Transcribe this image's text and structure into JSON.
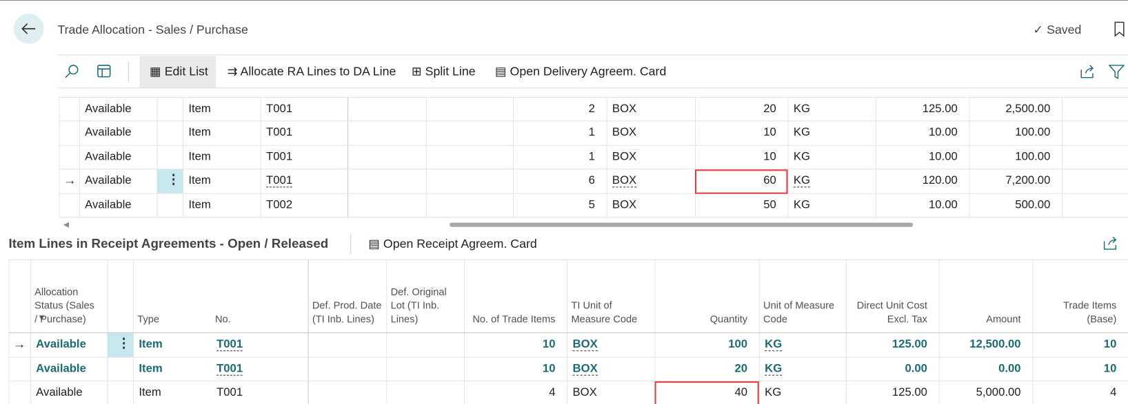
{
  "header": {
    "title": "Trade Allocation - Sales / Purchase",
    "status": "Saved"
  },
  "toolbar": {
    "actions": [
      "Edit List",
      "Allocate RA Lines to DA Line",
      "Split Line",
      "Open Delivery Agreem. Card"
    ]
  },
  "top_table": {
    "rows": [
      {
        "status": "Available",
        "type": "Item",
        "no": "T001",
        "trade_items": "2",
        "ti_uom": "BOX",
        "quantity": "20",
        "uom": "KG",
        "unit_cost": "125.00",
        "amount": "2,500.00"
      },
      {
        "status": "Available",
        "type": "Item",
        "no": "T001",
        "trade_items": "1",
        "ti_uom": "BOX",
        "quantity": "10",
        "uom": "KG",
        "unit_cost": "10.00",
        "amount": "100.00"
      },
      {
        "status": "Available",
        "type": "Item",
        "no": "T001",
        "trade_items": "1",
        "ti_uom": "BOX",
        "quantity": "10",
        "uom": "KG",
        "unit_cost": "10.00",
        "amount": "100.00"
      },
      {
        "status": "Available",
        "type": "Item",
        "no": "T001",
        "trade_items": "6",
        "ti_uom": "BOX",
        "quantity": "60",
        "uom": "KG",
        "unit_cost": "120.00",
        "amount": "7,200.00"
      },
      {
        "status": "Available",
        "type": "Item",
        "no": "T002",
        "trade_items": "5",
        "ti_uom": "BOX",
        "quantity": "50",
        "uom": "KG",
        "unit_cost": "10.00",
        "amount": "500.00"
      }
    ]
  },
  "bottom": {
    "title": "Item Lines in Receipt Agreements - Open / Released",
    "actions": [
      "Open Receipt Agreem. Card"
    ],
    "columns": {
      "status": "Allocation Status (Sales / Purchase)",
      "type": "Type",
      "no": "No.",
      "def_prod_date": "Def. Prod. Date (TI Inb. Lines)",
      "def_lot": "Def. Original Lot (TI Inb. Lines)",
      "trade_items": "No. of Trade Items",
      "ti_uom": "TI Unit of Measure Code",
      "quantity": "Quantity",
      "uom": "Unit of Measure Code",
      "unit_cost": "Direct Unit Cost Excl. Tax",
      "amount": "Amount",
      "trade_base": "Trade Items (Base)"
    },
    "rows": [
      {
        "status": "Available",
        "type": "Item",
        "no": "T001",
        "trade_items": "10",
        "ti_uom": "BOX",
        "quantity": "100",
        "uom": "KG",
        "unit_cost": "125.00",
        "amount": "12,500.00",
        "trade_base": "10"
      },
      {
        "status": "Available",
        "type": "Item",
        "no": "T001",
        "trade_items": "10",
        "ti_uom": "BOX",
        "quantity": "20",
        "uom": "KG",
        "unit_cost": "0.00",
        "amount": "0.00",
        "trade_base": "10"
      },
      {
        "status": "Available",
        "type": "Item",
        "no": "T001",
        "trade_items": "4",
        "ti_uom": "BOX",
        "quantity": "40",
        "uom": "KG",
        "unit_cost": "125.00",
        "amount": "5,000.00",
        "trade_base": "4"
      }
    ]
  }
}
